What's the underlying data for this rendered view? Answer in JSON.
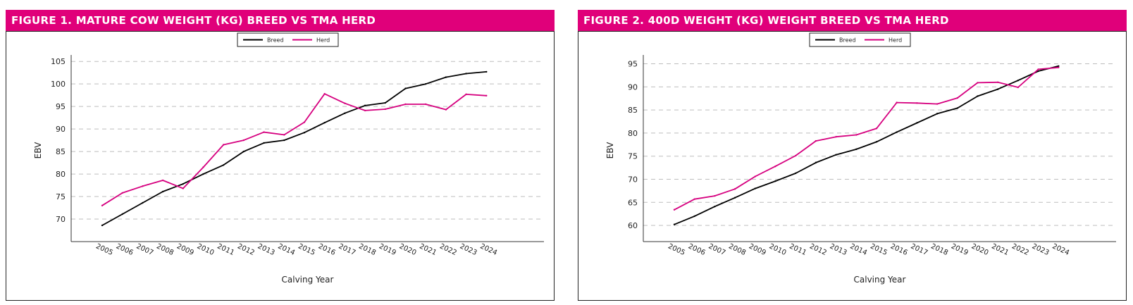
{
  "chart_data": [
    {
      "type": "line",
      "title": "FIGURE 1. MATURE COW WEIGHT (KG) BREED VS TMA HERD",
      "xlabel": "Calving Year",
      "ylabel": "EBV",
      "categories": [
        "2005",
        "2006",
        "2007",
        "2008",
        "2009",
        "2010",
        "2011",
        "2012",
        "2013",
        "2014",
        "2015",
        "2016",
        "2017",
        "2018",
        "2019",
        "2020",
        "2021",
        "2022",
        "2023",
        "2024"
      ],
      "y_ticks": [
        70,
        75,
        80,
        85,
        90,
        95,
        100,
        105
      ],
      "ylim": [
        65,
        105.5
      ],
      "grid": "horizontal dashed",
      "legend_position": "top-center",
      "series": [
        {
          "name": "Breed",
          "color": "#000000",
          "values": [
            68.6,
            71.1,
            73.6,
            76.1,
            77.8,
            80.0,
            82.0,
            85.0,
            86.9,
            87.5,
            89.2,
            91.4,
            93.5,
            95.2,
            95.8,
            99.0,
            100.0,
            101.5,
            102.3,
            102.7
          ]
        },
        {
          "name": "Herd",
          "color": "#d6007f",
          "values": [
            73.0,
            75.8,
            77.3,
            78.6,
            76.8,
            81.5,
            86.5,
            87.5,
            89.3,
            88.7,
            91.5,
            97.8,
            95.7,
            94.1,
            94.4,
            95.5,
            95.5,
            94.3,
            97.7,
            97.4
          ]
        }
      ]
    },
    {
      "type": "line",
      "title": "FIGURE 2. 400D WEIGHT (KG) WEIGHT BREED VS TMA HERD",
      "xlabel": "Calving Year",
      "ylabel": "EBV",
      "categories": [
        "2005",
        "2006",
        "2007",
        "2008",
        "2009",
        "2010",
        "2011",
        "2012",
        "2013",
        "2014",
        "2015",
        "2016",
        "2017",
        "2018",
        "2019",
        "2020",
        "2021",
        "2022",
        "2023",
        "2024"
      ],
      "y_ticks": [
        60,
        65,
        70,
        75,
        80,
        85,
        90,
        95
      ],
      "ylim": [
        56.5,
        96
      ],
      "grid": "horizontal dashed",
      "legend_position": "top-center",
      "series": [
        {
          "name": "Breed",
          "color": "#000000",
          "values": [
            60.2,
            62.0,
            64.1,
            66.0,
            68.0,
            69.6,
            71.3,
            73.6,
            75.3,
            76.5,
            78.1,
            80.2,
            82.2,
            84.2,
            85.4,
            88.0,
            89.5,
            91.4,
            93.4,
            94.5
          ]
        },
        {
          "name": "Herd",
          "color": "#d6007f",
          "values": [
            63.4,
            65.7,
            66.4,
            67.9,
            70.6,
            72.8,
            75.1,
            78.3,
            79.2,
            79.6,
            81.0,
            86.6,
            86.5,
            86.3,
            87.6,
            90.9,
            91.0,
            89.9,
            93.8,
            94.2
          ]
        }
      ]
    }
  ]
}
